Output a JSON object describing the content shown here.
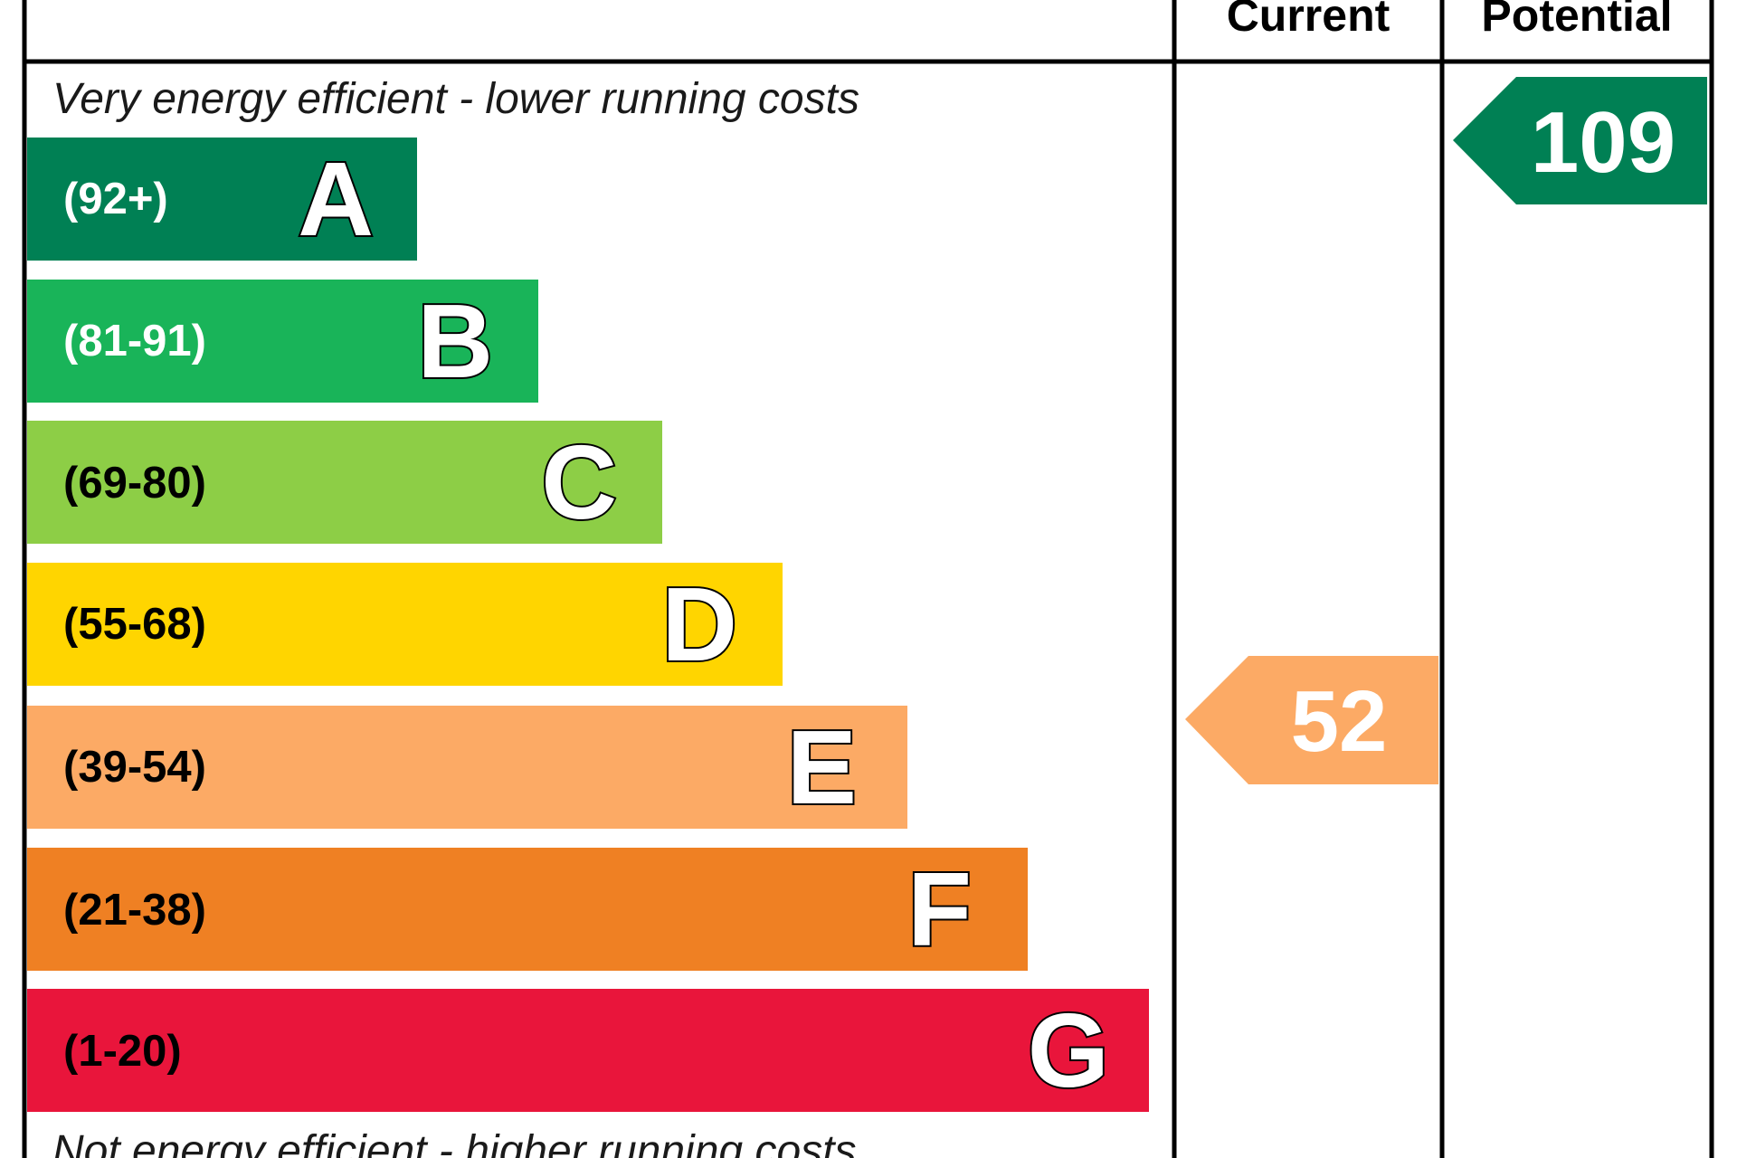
{
  "chart_data": {
    "type": "bar",
    "header": {
      "current": "Current",
      "potential": "Potential"
    },
    "top_caption": "Very energy efficient - lower running costs",
    "bottom_caption": "Not energy efficient - higher running costs",
    "bands": [
      {
        "letter": "A",
        "range": "(92+)",
        "min": 92,
        "color": "#008054",
        "range_color": "#ffffff"
      },
      {
        "letter": "B",
        "range": "(81-91)",
        "min": 81,
        "color": "#19b459",
        "range_color": "#ffffff"
      },
      {
        "letter": "C",
        "range": "(69-80)",
        "min": 69,
        "color": "#8dce46",
        "range_color": "#000000"
      },
      {
        "letter": "D",
        "range": "(55-68)",
        "min": 55,
        "color": "#ffd500",
        "range_color": "#000000"
      },
      {
        "letter": "E",
        "range": "(39-54)",
        "min": 39,
        "color": "#fcaa65",
        "range_color": "#000000"
      },
      {
        "letter": "F",
        "range": "(21-38)",
        "min": 21,
        "color": "#ef8023",
        "range_color": "#000000"
      },
      {
        "letter": "G",
        "range": "(1-20)",
        "min": 1,
        "color": "#e9153b",
        "range_color": "#000000"
      }
    ],
    "current": {
      "value": 52,
      "band": "E",
      "color": "#fcaa65"
    },
    "potential": {
      "value": 109,
      "band": "A",
      "color": "#008054"
    }
  }
}
